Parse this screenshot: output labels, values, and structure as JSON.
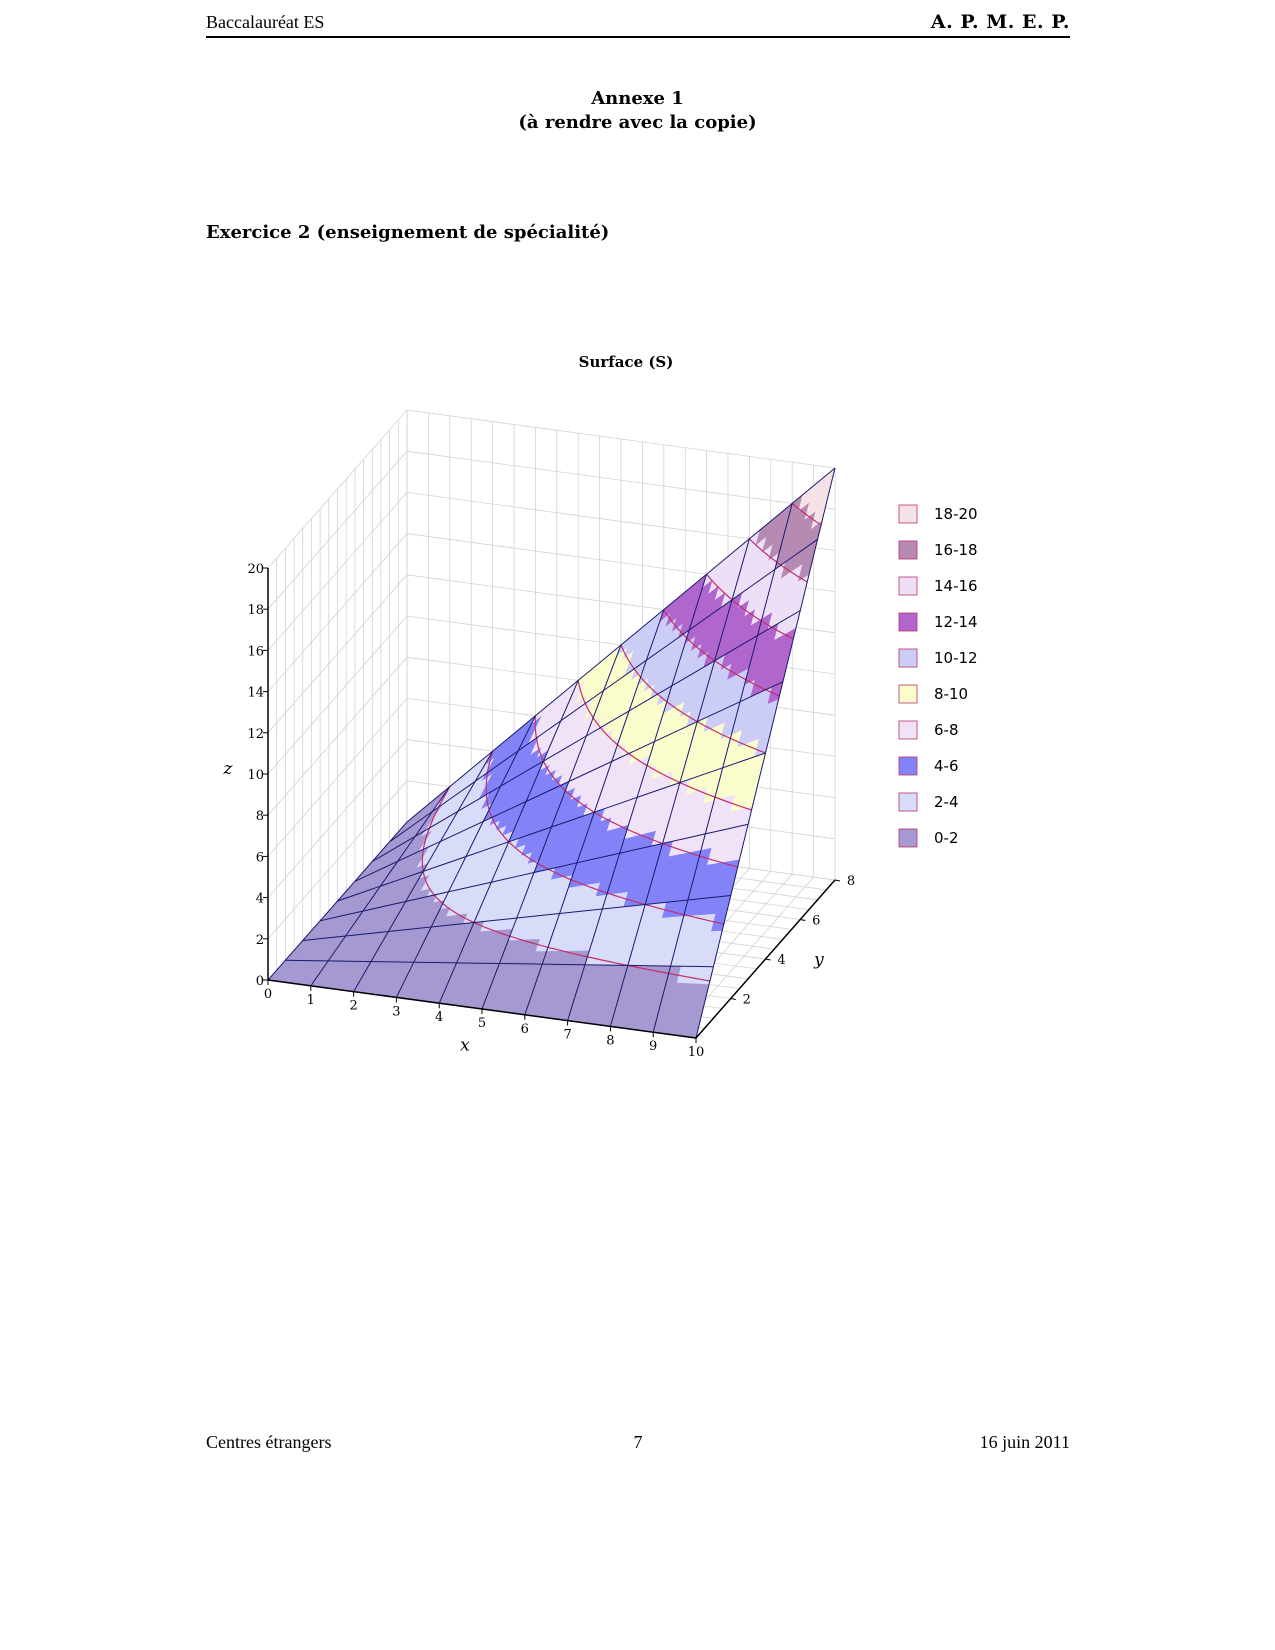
{
  "header": {
    "left": "Baccalauréat ES",
    "right": "A. P. M. E. P."
  },
  "annex": {
    "title": "Annexe 1",
    "subtitle": "(à rendre avec la copie)"
  },
  "exercise": {
    "title": "Exercice 2 (enseignement de spécialité)"
  },
  "chart_data": {
    "type": "surface3d",
    "title": "Surface (S)",
    "xlabel": "x",
    "ylabel": "y",
    "zlabel": "z",
    "x_ticks": [
      "0",
      "1",
      "2",
      "3",
      "4",
      "5",
      "6",
      "7",
      "8",
      "9",
      "10"
    ],
    "y_ticks": [
      "2",
      "4",
      "6",
      "8"
    ],
    "z_ticks": [
      "0",
      "2",
      "4",
      "6",
      "8",
      "10",
      "12",
      "14",
      "16",
      "18",
      "20"
    ],
    "xlim": [
      0,
      10
    ],
    "ylim": [
      0,
      8
    ],
    "zlim": [
      0,
      20
    ],
    "legend": [
      {
        "label": "18-20",
        "color": "#f4e2e6"
      },
      {
        "label": "16-18",
        "color": "#b68bb3"
      },
      {
        "label": "14-16",
        "color": "#ede0f6"
      },
      {
        "label": "12-14",
        "color": "#b066cc"
      },
      {
        "label": "10-12",
        "color": "#cccdf6"
      },
      {
        "label": "8-10",
        "color": "#fbfccb"
      },
      {
        "label": "6-8",
        "color": "#f0e3f8"
      },
      {
        "label": "4-6",
        "color": "#8283f8"
      },
      {
        "label": "2-4",
        "color": "#d8dcf8"
      },
      {
        "label": "0-2",
        "color": "#a698d1"
      }
    ],
    "grid": true,
    "legend_position": "right"
  },
  "footer": {
    "left": "Centres étrangers",
    "center": "7",
    "right": "16 juin 2011"
  }
}
